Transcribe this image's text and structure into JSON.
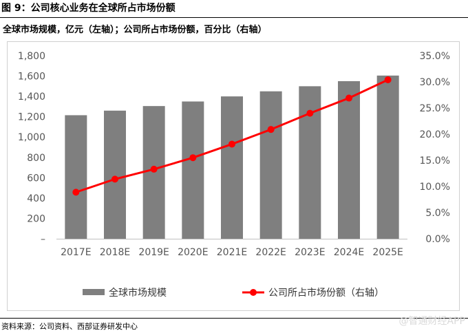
{
  "figure_label": "图 9：公司核心业务在全球所占市场份额",
  "subtitle": "全球市场规模，亿元（左轴）；公司所占市场份额，百分比（右轴）",
  "source": "资料来源：公司资料、西部证券研发中心",
  "watermark": "@智通财经APP",
  "colors": {
    "bar": "#7f7f7f",
    "line": "#ff0000",
    "frame": "#cfcfcf"
  },
  "chart_data": {
    "type": "bar",
    "categories": [
      "2017E",
      "2018E",
      "2019E",
      "2020E",
      "2021E",
      "2022E",
      "2023E",
      "2024E",
      "2025E"
    ],
    "series": [
      {
        "name": "全球市场规模",
        "type": "bar",
        "axis": "left",
        "values": [
          1215,
          1260,
          1305,
          1350,
          1400,
          1450,
          1500,
          1550,
          1605
        ]
      },
      {
        "name": "公司所占市场份额（右轴）",
        "type": "line",
        "axis": "right",
        "values": [
          8.9,
          11.4,
          13.3,
          15.5,
          18.1,
          20.9,
          24.0,
          26.9,
          30.4
        ]
      }
    ],
    "left_axis": {
      "ticks": [
        "–",
        "200",
        "400",
        "600",
        "800",
        "1,000",
        "1,200",
        "1,400",
        "1,600",
        "1,800"
      ],
      "ylim": [
        0,
        1800
      ]
    },
    "right_axis": {
      "ticks": [
        "0.0%",
        "5.0%",
        "10.0%",
        "15.0%",
        "20.0%",
        "25.0%",
        "30.0%",
        "35.0%"
      ],
      "ylim": [
        0,
        35
      ]
    },
    "grid": false,
    "legend_position": "bottom"
  }
}
